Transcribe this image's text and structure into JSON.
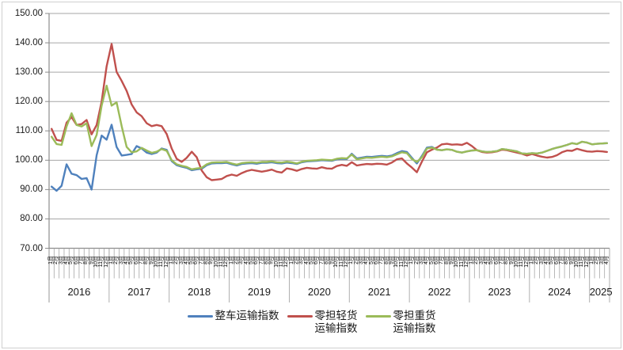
{
  "chart_data": {
    "type": "line",
    "title": "",
    "y_axis": {
      "min": 70,
      "max": 150,
      "step": 10,
      "tick_labels": [
        "150.00",
        "140.00",
        "130.00",
        "120.00",
        "110.00",
        "100.00",
        "90.00",
        "80.00",
        "70.00"
      ]
    },
    "x_axis": {
      "years": [
        "2016",
        "2017",
        "2018",
        "2019",
        "2020",
        "2021",
        "2022",
        "2023",
        "2024",
        "2025"
      ],
      "months_per_full_year": 12,
      "last_year_month_count": 4,
      "month_labels": [
        "1月",
        "2月",
        "3月",
        "4月",
        "5月",
        "6月",
        "7月",
        "8月",
        "9月",
        "10月",
        "11月",
        "12月"
      ]
    },
    "grid": true,
    "legend_position": "bottom",
    "series": [
      {
        "name": "整车运输指数",
        "color": "#4F81BD",
        "values": [
          91.0,
          89.6,
          91.3,
          98.6,
          95.4,
          94.9,
          93.6,
          93.9,
          90.0,
          101.7,
          108.4,
          107.0,
          112.1,
          104.5,
          101.6,
          101.8,
          102.1,
          104.8,
          104.0,
          102.6,
          102.1,
          102.6,
          104.0,
          103.5,
          99.7,
          98.3,
          97.8,
          97.4,
          96.6,
          96.9,
          97.1,
          98.3,
          98.9,
          99.0,
          99.0,
          99.1,
          98.6,
          98.2,
          98.7,
          98.9,
          99.0,
          98.8,
          99.1,
          99.1,
          99.3,
          99.0,
          98.9,
          99.2,
          99.0,
          98.7,
          99.3,
          99.6,
          99.7,
          99.8,
          100.0,
          99.9,
          99.8,
          100.3,
          100.5,
          100.4,
          102.2,
          100.6,
          100.9,
          101.2,
          101.1,
          101.3,
          101.5,
          101.3,
          101.6,
          102.4,
          103.1,
          102.8,
          100.8,
          98.9,
          101.4,
          104.3,
          104.5,
          103.6,
          103.4,
          103.7,
          103.5,
          102.9,
          102.6,
          103.0,
          103.3,
          103.4,
          103.0,
          102.8,
          102.9,
          103.1,
          103.8,
          103.6,
          103.3,
          103.0,
          102.3,
          102.2,
          102.4,
          102.3,
          102.6,
          103.2,
          103.8,
          104.3,
          104.7,
          105.2,
          105.8,
          105.5,
          106.3,
          106.0,
          105.4,
          105.6,
          105.7,
          105.8
        ]
      },
      {
        "name": "零担轻货运输指数",
        "color": "#C0504D",
        "values": [
          110.7,
          106.9,
          106.6,
          112.8,
          114.7,
          112.0,
          112.3,
          113.7,
          108.8,
          112.0,
          120.0,
          132.0,
          139.6,
          130.1,
          127.0,
          123.6,
          119.0,
          116.3,
          115.0,
          112.6,
          111.6,
          112.0,
          111.6,
          108.9,
          104.0,
          100.5,
          99.4,
          100.8,
          102.9,
          101.0,
          96.5,
          94.2,
          93.2,
          93.4,
          93.6,
          94.6,
          95.1,
          94.7,
          95.6,
          96.3,
          96.7,
          96.4,
          96.1,
          96.4,
          96.8,
          96.1,
          95.8,
          97.2,
          96.9,
          96.4,
          97.0,
          97.4,
          97.2,
          97.1,
          97.6,
          97.2,
          97.1,
          98.0,
          98.4,
          98.1,
          99.3,
          98.2,
          98.5,
          98.7,
          98.6,
          98.8,
          98.7,
          98.5,
          99.2,
          100.3,
          100.6,
          98.9,
          97.5,
          95.9,
          99.5,
          102.7,
          103.6,
          104.3,
          105.4,
          105.6,
          105.3,
          105.4,
          105.2,
          105.9,
          104.8,
          103.4,
          102.8,
          102.6,
          102.7,
          103.0,
          103.6,
          103.4,
          103.0,
          102.6,
          102.2,
          101.6,
          102.1,
          101.6,
          101.2,
          100.9,
          101.1,
          101.7,
          102.7,
          103.3,
          103.2,
          103.9,
          103.4,
          103.0,
          102.9,
          103.1,
          103.0,
          102.8
        ]
      },
      {
        "name": "零担重货运输指数",
        "color": "#9BBB59",
        "values": [
          108.0,
          105.5,
          105.2,
          111.5,
          116.0,
          112.0,
          111.5,
          112.6,
          104.8,
          108.6,
          118.6,
          125.4,
          118.6,
          119.7,
          111.6,
          104.5,
          102.7,
          103.0,
          104.2,
          103.3,
          102.5,
          102.9,
          103.8,
          103.2,
          100.0,
          98.6,
          98.1,
          97.7,
          96.9,
          97.2,
          97.4,
          98.6,
          99.2,
          99.3,
          99.3,
          99.4,
          98.9,
          98.5,
          99.0,
          99.2,
          99.3,
          99.1,
          99.4,
          99.4,
          99.6,
          99.3,
          99.2,
          99.5,
          99.3,
          98.9,
          99.5,
          99.8,
          99.9,
          100.0,
          100.2,
          100.1,
          100.0,
          100.5,
          100.7,
          100.6,
          101.9,
          100.3,
          100.6,
          100.9,
          100.8,
          101.0,
          101.2,
          101.0,
          101.3,
          102.0,
          102.7,
          102.4,
          100.4,
          99.4,
          101.0,
          104.0,
          104.3,
          103.6,
          103.4,
          103.7,
          103.5,
          102.9,
          102.6,
          103.0,
          103.3,
          103.4,
          103.0,
          102.8,
          102.9,
          103.1,
          103.8,
          103.6,
          103.3,
          103.0,
          102.3,
          102.2,
          102.4,
          102.3,
          102.6,
          103.2,
          103.8,
          104.3,
          104.7,
          105.2,
          105.8,
          105.5,
          106.3,
          106.0,
          105.4,
          105.6,
          105.7,
          105.8
        ]
      }
    ],
    "legend": [
      {
        "label_lines": [
          "整车运输指数"
        ],
        "color": "#4F81BD"
      },
      {
        "label_lines": [
          "零担轻货",
          "运输指数"
        ],
        "color": "#C0504D"
      },
      {
        "label_lines": [
          "零担重货",
          "运输指数"
        ],
        "color": "#9BBB59"
      }
    ],
    "colors": {
      "gridline": "#a6a6a6",
      "axis": "#8c8c8c",
      "tick": "#a6a6a6",
      "text": "#1a1a1a",
      "frame_border": "#cfcfcf"
    }
  }
}
